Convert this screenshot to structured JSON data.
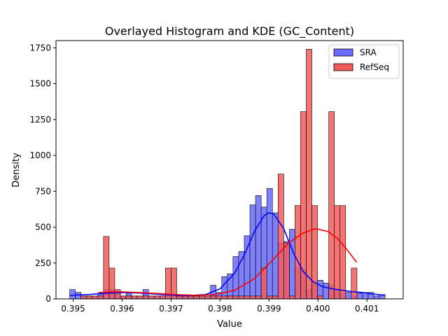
{
  "chart_data": {
    "type": "histogram+kde",
    "title": "Overlayed Histogram and KDE (GC_Content)",
    "xlabel": "Value",
    "ylabel": "Density",
    "xlim": [
      0.39465,
      0.40174
    ],
    "ylim": [
      0,
      1800
    ],
    "xticks": [
      {
        "value": 0.395,
        "label": "0.395"
      },
      {
        "value": 0.396,
        "label": "0.396"
      },
      {
        "value": 0.397,
        "label": "0.397"
      },
      {
        "value": 0.398,
        "label": "0.398"
      },
      {
        "value": 0.399,
        "label": "0.399"
      },
      {
        "value": 0.4,
        "label": "0.400"
      },
      {
        "value": 0.401,
        "label": "0.401"
      }
    ],
    "yticks": [
      {
        "value": 0,
        "label": "0"
      },
      {
        "value": 250,
        "label": "250"
      },
      {
        "value": 500,
        "label": "500"
      },
      {
        "value": 750,
        "label": "750"
      },
      {
        "value": 1000,
        "label": "1000"
      },
      {
        "value": 1250,
        "label": "1250"
      },
      {
        "value": 1500,
        "label": "1500"
      },
      {
        "value": 1750,
        "label": "1750"
      }
    ],
    "grid": false,
    "legend": "top-right",
    "series": [
      {
        "name": "SRA",
        "color": "#0000ff",
        "fill": "#6a6aff",
        "bin_width": 0.000115,
        "bins_start": [
          0.39493,
          0.395045,
          0.39516,
          0.395275,
          0.39539,
          0.395505,
          0.39562,
          0.395735,
          0.39585,
          0.395965,
          0.39608,
          0.396195,
          0.39631,
          0.396425,
          0.39654,
          0.396655,
          0.39677,
          0.396885,
          0.397,
          0.397115,
          0.39723,
          0.397345,
          0.39746,
          0.397575,
          0.39769,
          0.397805,
          0.39792,
          0.398035,
          0.39815,
          0.398265,
          0.39838,
          0.398495,
          0.39861,
          0.398725,
          0.39884,
          0.398955,
          0.39907,
          0.399185,
          0.3993,
          0.399415,
          0.39953,
          0.399645,
          0.39976,
          0.399875,
          0.39999,
          0.400105,
          0.40022,
          0.400335,
          0.40045,
          0.400565,
          0.40068,
          0.400795,
          0.40091,
          0.401025,
          0.40114,
          0.401255
        ],
        "density": [
          65,
          45,
          20,
          20,
          20,
          40,
          65,
          65,
          45,
          20,
          40,
          20,
          20,
          65,
          20,
          20,
          20,
          20,
          20,
          20,
          20,
          20,
          20,
          20,
          20,
          95,
          45,
          155,
          175,
          295,
          330,
          440,
          655,
          720,
          640,
          770,
          600,
          390,
          400,
          485,
          220,
          200,
          65,
          110,
          130,
          110,
          95,
          65,
          40,
          45,
          20,
          40,
          45,
          45,
          20,
          30
        ],
        "kde": {
          "x": [
            0.39493,
            0.3953,
            0.3957,
            0.3961,
            0.3965,
            0.3969,
            0.3973,
            0.3977,
            0.398,
            0.3983,
            0.3985,
            0.3987,
            0.3989,
            0.399,
            0.3991,
            0.3993,
            0.3995,
            0.3997,
            0.3999,
            0.4001,
            0.4003,
            0.4005,
            0.4007,
            0.4009,
            0.4011,
            0.40137
          ],
          "y": [
            25,
            30,
            40,
            45,
            38,
            28,
            22,
            30,
            70,
            180,
            310,
            470,
            580,
            600,
            590,
            490,
            320,
            190,
            120,
            85,
            70,
            60,
            50,
            45,
            35,
            25
          ]
        }
      },
      {
        "name": "RefSeq",
        "color": "#ff0000",
        "fill": "#f25a5a",
        "bin_width": 0.000115,
        "bins_start": [
          0.39516,
          0.395275,
          0.39539,
          0.395505,
          0.39562,
          0.395735,
          0.39585,
          0.395965,
          0.39608,
          0.396195,
          0.39631,
          0.396425,
          0.39654,
          0.396655,
          0.39677,
          0.396885,
          0.397,
          0.397115,
          0.39723,
          0.397345,
          0.39746,
          0.397575,
          0.39769,
          0.397805,
          0.39792,
          0.398035,
          0.39815,
          0.398265,
          0.39838,
          0.398495,
          0.39861,
          0.398725,
          0.39884,
          0.398955,
          0.39907,
          0.399185,
          0.3993,
          0.399415,
          0.39953,
          0.399645,
          0.39976,
          0.399875,
          0.39999,
          0.400105,
          0.40022,
          0.400335,
          0.40045,
          0.400565,
          0.40068
        ],
        "density": [
          20,
          20,
          20,
          20,
          435,
          215,
          65,
          20,
          20,
          20,
          20,
          20,
          20,
          20,
          20,
          215,
          215,
          20,
          20,
          20,
          20,
          20,
          20,
          20,
          20,
          20,
          20,
          20,
          20,
          20,
          20,
          20,
          215,
          20,
          20,
          870,
          390,
          20,
          650,
          1305,
          1740,
          650,
          20,
          0,
          1305,
          650,
          650,
          0,
          215
        ],
        "kde": {
          "x": [
            0.39552,
            0.3959,
            0.3963,
            0.3967,
            0.3971,
            0.3975,
            0.3979,
            0.3983,
            0.3987,
            0.3991,
            0.3994,
            0.3997,
            0.39995,
            0.4002,
            0.4004,
            0.4006,
            0.40079
          ],
          "y": [
            45,
            50,
            45,
            38,
            30,
            25,
            30,
            60,
            140,
            280,
            390,
            460,
            490,
            470,
            420,
            340,
            255
          ]
        }
      }
    ]
  }
}
